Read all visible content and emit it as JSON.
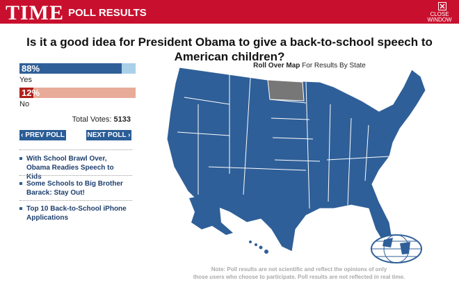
{
  "header": {
    "brand": "TIME",
    "title": "POLL RESULTS",
    "close": [
      "CLOSE",
      "WINDOW"
    ]
  },
  "question": "Is it a good idea for President Obama to give a back-to-school speech to American children?",
  "results": [
    {
      "value": 88,
      "value_label": "88%",
      "label": "Yes"
    },
    {
      "value": 12,
      "value_label": "12%",
      "label": "No"
    }
  ],
  "total": {
    "label": "Total Votes:",
    "value": 5133
  },
  "nav": {
    "prev": "‹ PREV POLL",
    "next": "NEXT POLL ›"
  },
  "links": [
    "With School Brawl Over, Obama Readies Speech to Kids",
    "Some Schools to Big Brother Barack: Stay Out!",
    "Top 10 Back-to-School iPhone Applications"
  ],
  "map": {
    "caption_bold": "Roll Over Map",
    "caption": "For Results By State"
  },
  "note": [
    "Note: Poll results are not scientific and reflect the opinions of only",
    "those users who choose to participate. Poll results are not reflected in real time."
  ]
}
